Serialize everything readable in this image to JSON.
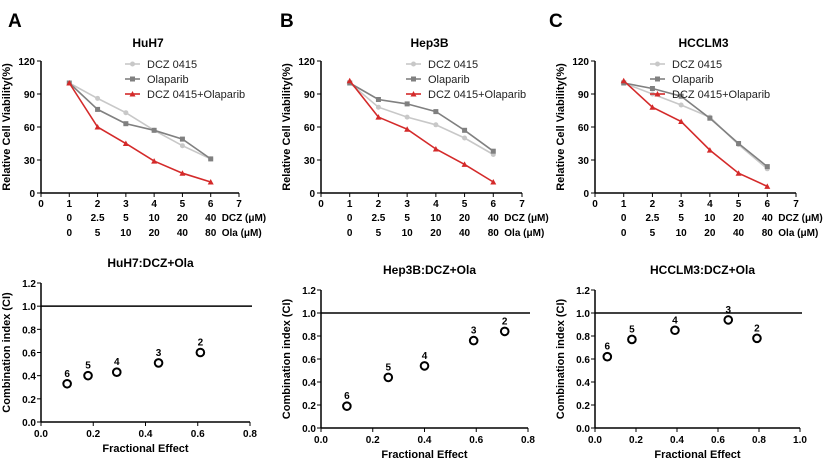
{
  "panel_letters": [
    "A",
    "B",
    "C"
  ],
  "colors": {
    "dcz": "#c8c8c8",
    "ola": "#808080",
    "combo": "#d42a2a",
    "axis": "#000000"
  },
  "chart_data": [
    {
      "type": "line",
      "title": "HuH7",
      "ylabel": "Relative Cell Viability(%)",
      "ylim": [
        0,
        120
      ],
      "yticks": [
        0,
        30,
        60,
        90,
        120
      ],
      "xlim": [
        0,
        7
      ],
      "xticks": [
        0,
        1,
        2,
        3,
        4,
        5,
        6,
        7
      ],
      "x": [
        1,
        2,
        3,
        4,
        5,
        6
      ],
      "dose_rows": [
        {
          "label": "DCZ (μM)",
          "values": [
            "0",
            "2.5",
            "5",
            "10",
            "20",
            "40"
          ]
        },
        {
          "label": "Ola (μM)",
          "values": [
            "0",
            "5",
            "10",
            "20",
            "40",
            "80"
          ]
        }
      ],
      "legend_placement": "top-right",
      "series": [
        {
          "name": "DCZ 0415",
          "marker": "circle",
          "values": [
            100,
            86,
            73,
            57,
            43,
            31
          ]
        },
        {
          "name": "Olaparib",
          "marker": "square",
          "values": [
            100,
            76,
            63,
            57,
            49,
            31
          ]
        },
        {
          "name": "DCZ 0415+Olaparib",
          "marker": "triangle",
          "values": [
            100,
            60,
            45,
            29,
            18,
            10
          ]
        }
      ]
    },
    {
      "type": "line",
      "title": "Hep3B",
      "ylabel": "Relative Cell Viability(%)",
      "ylim": [
        0,
        120
      ],
      "yticks": [
        0,
        30,
        60,
        90,
        120
      ],
      "xlim": [
        0,
        7
      ],
      "xticks": [
        0,
        1,
        2,
        3,
        4,
        5,
        6,
        7
      ],
      "x": [
        1,
        2,
        3,
        4,
        5,
        6
      ],
      "dose_rows": [
        {
          "label": "DCZ (μM)",
          "values": [
            "0",
            "2.5",
            "5",
            "10",
            "20",
            "40"
          ]
        },
        {
          "label": "Ola (μM)",
          "values": [
            "0",
            "5",
            "10",
            "20",
            "40",
            "80"
          ]
        }
      ],
      "legend_placement": "top-right",
      "series": [
        {
          "name": "DCZ 0415",
          "marker": "circle",
          "values": [
            100,
            78,
            69,
            62,
            50,
            35
          ]
        },
        {
          "name": "Olaparib",
          "marker": "square",
          "values": [
            100,
            85,
            81,
            74,
            57,
            38
          ]
        },
        {
          "name": "DCZ 0415+Olaparib",
          "marker": "triangle",
          "values": [
            102,
            69,
            58,
            40,
            26,
            10
          ]
        }
      ]
    },
    {
      "type": "line",
      "title": "HCCLM3",
      "ylabel": "Relative Cell Viability(%)",
      "ylim": [
        0,
        120
      ],
      "yticks": [
        0,
        30,
        60,
        90,
        120
      ],
      "xlim": [
        0,
        7
      ],
      "xticks": [
        0,
        1,
        2,
        3,
        4,
        5,
        6,
        7
      ],
      "x": [
        1,
        2,
        3,
        4,
        5,
        6
      ],
      "dose_rows": [
        {
          "label": "DCZ (μM)",
          "values": [
            "0",
            "2.5",
            "5",
            "10",
            "20",
            "40"
          ]
        },
        {
          "label": "Ola (μM)",
          "values": [
            "0",
            "5",
            "10",
            "20",
            "40",
            "80"
          ]
        }
      ],
      "legend_placement": "top-right",
      "series": [
        {
          "name": "DCZ 0415",
          "marker": "circle",
          "values": [
            100,
            90,
            80,
            69,
            44,
            22
          ]
        },
        {
          "name": "Olaparib",
          "marker": "square",
          "values": [
            100,
            95,
            88,
            68,
            45,
            24
          ]
        },
        {
          "name": "DCZ 0415+Olaparib",
          "marker": "triangle",
          "values": [
            102,
            78,
            65,
            39,
            18,
            6
          ]
        }
      ]
    },
    {
      "type": "scatter",
      "title": "HuH7:DCZ+Ola",
      "xlabel": "Fractional Effect",
      "ylabel": "Combination index (CI)",
      "xlim": [
        0,
        0.8
      ],
      "xticks": [
        "0.0",
        "0.2",
        "0.4",
        "0.6",
        "0.8"
      ],
      "ylim": [
        0,
        1.2
      ],
      "yticks": [
        "0.0",
        "0.2",
        "0.4",
        "0.6",
        "0.8",
        "1.0",
        "1.2"
      ],
      "reference_line": 1.0,
      "points": [
        {
          "x": 0.1,
          "y": 0.33,
          "label": "6"
        },
        {
          "x": 0.18,
          "y": 0.4,
          "label": "5"
        },
        {
          "x": 0.29,
          "y": 0.43,
          "label": "4"
        },
        {
          "x": 0.45,
          "y": 0.51,
          "label": "3"
        },
        {
          "x": 0.61,
          "y": 0.6,
          "label": "2"
        }
      ]
    },
    {
      "type": "scatter",
      "title": "Hep3B:DCZ+Ola",
      "xlabel": "Fractional Effect",
      "ylabel": "Combination index (CI)",
      "xlim": [
        0,
        0.8
      ],
      "xticks": [
        "0.0",
        "0.2",
        "0.4",
        "0.6",
        "0.8"
      ],
      "ylim": [
        0,
        1.2
      ],
      "yticks": [
        "0.0",
        "0.2",
        "0.4",
        "0.6",
        "0.8",
        "1.0",
        "1.2"
      ],
      "reference_line": 1.0,
      "points": [
        {
          "x": 0.1,
          "y": 0.19,
          "label": "6"
        },
        {
          "x": 0.26,
          "y": 0.44,
          "label": "5"
        },
        {
          "x": 0.4,
          "y": 0.54,
          "label": "4"
        },
        {
          "x": 0.59,
          "y": 0.76,
          "label": "3"
        },
        {
          "x": 0.71,
          "y": 0.84,
          "label": "2"
        }
      ]
    },
    {
      "type": "scatter",
      "title": "HCCLM3:DCZ+Ola",
      "xlabel": "Fractional Effect",
      "ylabel": "Combination index (CI)",
      "xlim": [
        0,
        1.0
      ],
      "xticks": [
        "0.0",
        "0.2",
        "0.4",
        "0.6",
        "0.8",
        "1.0"
      ],
      "ylim": [
        0,
        1.2
      ],
      "yticks": [
        "0.0",
        "0.2",
        "0.4",
        "0.6",
        "0.8",
        "1.0",
        "1.2"
      ],
      "reference_line": 1.0,
      "points": [
        {
          "x": 0.06,
          "y": 0.62,
          "label": "6"
        },
        {
          "x": 0.18,
          "y": 0.77,
          "label": "5"
        },
        {
          "x": 0.39,
          "y": 0.85,
          "label": "4"
        },
        {
          "x": 0.65,
          "y": 0.94,
          "label": "3"
        },
        {
          "x": 0.79,
          "y": 0.78,
          "label": "2"
        }
      ]
    }
  ]
}
